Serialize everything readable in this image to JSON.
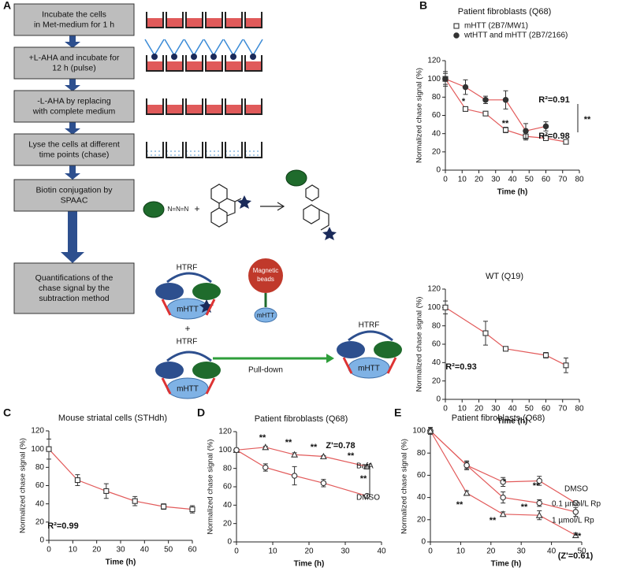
{
  "panel_labels": [
    "A",
    "B",
    "C",
    "D",
    "E"
  ],
  "flowchart": {
    "steps": [
      [
        "Incubate the cells",
        "in Met-medium for 1 h"
      ],
      [
        "+L-AHA and incubate for",
        "12 h (pulse)"
      ],
      [
        "-L-AHA by replacing",
        "with complete medium"
      ],
      [
        "Lyse the cells at different",
        "time points (chase)"
      ],
      [
        "Biotin conjugation by",
        "SPAAC"
      ],
      [
        "Quantifications of the",
        "chase signal by the",
        "subtraction method"
      ]
    ],
    "azide": "N=N=N",
    "htrf": [
      "HTRF",
      "HTRF",
      "HTRF"
    ],
    "mhtt": [
      "mHTT",
      "mHTT",
      "mHTT",
      "mHTT"
    ],
    "plus": "+",
    "beads": [
      "Magnetic",
      "beads"
    ],
    "pulldown": "Pull-down"
  },
  "chart_data": [
    {
      "type": "line",
      "title": "Patient fibroblasts (Q68)",
      "xlabel": "Time (h)",
      "ylabel": "Normalized chase signal (%)",
      "xlim": [
        0,
        80
      ],
      "xticks": [
        0,
        10,
        20,
        30,
        40,
        50,
        60,
        70,
        80
      ],
      "ylim": [
        0,
        120
      ],
      "yticks": [
        0,
        20,
        40,
        60,
        80,
        100,
        120
      ],
      "legend": "top",
      "series": [
        {
          "name": "mHTT (2B7/MW1)",
          "color": "#333333",
          "line_color": "#e25a5a",
          "marker": "open-square",
          "x": [
            0,
            12,
            24,
            36,
            48,
            60,
            72
          ],
          "values": [
            100,
            67,
            62,
            44,
            37,
            35,
            31
          ],
          "errors": [
            6,
            2,
            2,
            3,
            4,
            2,
            1
          ]
        },
        {
          "name": "wtHTT and mHTT (2B7/2166)",
          "color": "#333333",
          "line_color": "#e25a5a",
          "marker": "filled-circle",
          "x": [
            0,
            12,
            24,
            36,
            48,
            60
          ],
          "values": [
            100,
            91,
            77,
            77,
            43,
            48
          ],
          "errors": [
            8,
            8,
            4,
            10,
            8,
            5
          ]
        }
      ],
      "annotations": [
        "*",
        "**",
        "R²=0.91",
        "**",
        "R²=0.98"
      ]
    },
    {
      "type": "line",
      "title": "WT (Q19)",
      "xlabel": "Time (h)",
      "ylabel": "Normalized chase signal (%)",
      "xlim": [
        0,
        80
      ],
      "xticks": [
        0,
        10,
        20,
        30,
        40,
        50,
        60,
        70,
        80
      ],
      "ylim": [
        0,
        120
      ],
      "yticks": [
        0,
        20,
        40,
        60,
        80,
        100,
        120
      ],
      "series": [
        {
          "color": "#333333",
          "line_color": "#e25a5a",
          "marker": "open-square",
          "x": [
            0,
            24,
            36,
            60,
            72
          ],
          "values": [
            100,
            72,
            55,
            48,
            37
          ],
          "errors": [
            7,
            13,
            1,
            3,
            8
          ]
        }
      ],
      "annotations": [
        "R²=0.93"
      ]
    },
    {
      "type": "line",
      "title": "Mouse striatal cells (STHdh)",
      "xlabel": "Time (h)",
      "ylabel": "Normalized chase signal (%)",
      "xlim": [
        0,
        60
      ],
      "xticks": [
        0,
        10,
        20,
        30,
        40,
        50,
        60
      ],
      "ylim": [
        0,
        120
      ],
      "yticks": [
        0,
        20,
        40,
        60,
        80,
        100,
        120
      ],
      "series": [
        {
          "color": "#333333",
          "line_color": "#e25a5a",
          "marker": "open-square",
          "x": [
            0,
            12,
            24,
            36,
            48,
            60
          ],
          "values": [
            100,
            66,
            54,
            43,
            37,
            34
          ],
          "errors": [
            11,
            6,
            8,
            5,
            3,
            4
          ]
        }
      ],
      "annotations": [
        "R²=0.99"
      ]
    },
    {
      "type": "line",
      "title": "Patient fibroblasts (Q68)",
      "xlabel": "Time (h)",
      "ylabel": "Normalized chase signal (%)",
      "xlim": [
        0,
        40
      ],
      "xticks": [
        0,
        10,
        20,
        30,
        40
      ],
      "ylim": [
        0,
        120
      ],
      "yticks": [
        0,
        20,
        40,
        60,
        80,
        100,
        120
      ],
      "legend": "inline",
      "series": [
        {
          "name": "BafA",
          "color": "#333333",
          "line_color": "#e25a5a",
          "marker": "open-triangle",
          "x": [
            0,
            8,
            16,
            24,
            36
          ],
          "values": [
            100,
            103,
            95,
            93,
            82
          ],
          "errors": [
            2,
            1,
            2,
            1,
            2
          ]
        },
        {
          "name": "DMSO",
          "color": "#333333",
          "line_color": "#e25a5a",
          "marker": "open-circle",
          "x": [
            0,
            8,
            16,
            24,
            36
          ],
          "values": [
            100,
            81,
            72,
            64,
            50
          ],
          "errors": [
            2,
            4,
            10,
            4,
            1
          ]
        }
      ],
      "annotations": [
        "**",
        "**",
        "**",
        "Z'=0.78",
        "**",
        "**"
      ]
    },
    {
      "type": "line",
      "title": "Patient fibroblasts (Q68)",
      "xlabel": "Time (h)",
      "ylabel": "Normalized chase signal (%)",
      "xlim": [
        0,
        50
      ],
      "xticks": [
        0,
        10,
        20,
        30,
        40,
        50
      ],
      "ylim": [
        0,
        100
      ],
      "yticks": [
        0,
        20,
        40,
        60,
        80,
        100
      ],
      "legend": "inline",
      "series": [
        {
          "name": "DMSO",
          "color": "#333333",
          "line_color": "#e25a5a",
          "marker": "open-circle",
          "x": [
            0,
            12,
            24,
            36,
            48
          ],
          "values": [
            100,
            69,
            54,
            55,
            35
          ],
          "errors": [
            3,
            3,
            4,
            4,
            2
          ]
        },
        {
          "name": "0.1 µmol/L Rp",
          "color": "#333333",
          "line_color": "#e25a5a",
          "marker": "open-circle",
          "x": [
            0,
            12,
            24,
            36,
            48
          ],
          "values": [
            100,
            69,
            40,
            35,
            27
          ],
          "errors": [
            3,
            4,
            5,
            3,
            4
          ]
        },
        {
          "name": "1 µmol/L Rp",
          "color": "#333333",
          "line_color": "#e25a5a",
          "marker": "open-triangle",
          "x": [
            0,
            12,
            24,
            36,
            48
          ],
          "values": [
            100,
            44,
            25,
            24,
            6
          ],
          "errors": [
            3,
            2,
            2,
            4,
            2
          ]
        }
      ],
      "annotations": [
        "**",
        "*",
        "**",
        "**",
        "**",
        "**",
        "(Z'=0.61)"
      ]
    }
  ]
}
